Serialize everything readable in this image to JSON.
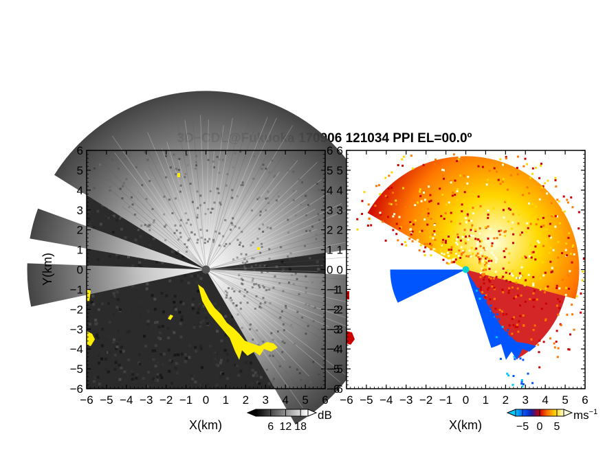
{
  "title": "3D−CDL@Fukuoka 170906 121034 PPI EL=00.0º",
  "chart_data": [
    {
      "type": "heatmap",
      "name": "reflectivity-ppi",
      "xlabel": "X(km)",
      "ylabel": "Y(km)",
      "xlim": [
        -6,
        6
      ],
      "ylim": [
        -6,
        6
      ],
      "xticks": [
        "−6",
        "−5",
        "−4",
        "−3",
        "−2",
        "−1",
        "0",
        "1",
        "2",
        "3",
        "4",
        "5",
        "6"
      ],
      "yticks": [
        "6",
        "5",
        "4",
        "3",
        "2",
        "1",
        "0",
        "−1",
        "−2",
        "−3",
        "−4",
        "−5",
        "−6"
      ],
      "colorbar": {
        "unit": "dB",
        "ticks": [
          "6",
          "12",
          "18"
        ],
        "range": [
          0,
          21
        ],
        "colors": [
          "#000000",
          "#ffffff"
        ]
      },
      "highlight_color": "#ffee00",
      "background_color": "#2b2b2b"
    },
    {
      "type": "heatmap",
      "name": "doppler-velocity-ppi",
      "xlabel": "X(km)",
      "ylabel": "",
      "xlim": [
        -6,
        6
      ],
      "ylim": [
        -6,
        6
      ],
      "xticks": [
        "−6",
        "−5",
        "−4",
        "−3",
        "−2",
        "−1",
        "0",
        "1",
        "2",
        "3",
        "4",
        "5",
        "6"
      ],
      "yticks": [
        "6",
        "5",
        "4",
        "3",
        "2",
        "1",
        "0",
        "−1",
        "−2",
        "−3",
        "−4",
        "−5",
        "−6"
      ],
      "colorbar": {
        "unit": "ms",
        "unit_sup": "−1",
        "ticks": [
          "−5",
          "0",
          "5"
        ],
        "range": [
          -7,
          7
        ],
        "colors": [
          "#00c8ff",
          "#0055ff",
          "#1a1aa0",
          "#cc0000",
          "#ff7700",
          "#ffd800",
          "#ffffdd"
        ]
      },
      "background_color": "#ffffff"
    }
  ]
}
